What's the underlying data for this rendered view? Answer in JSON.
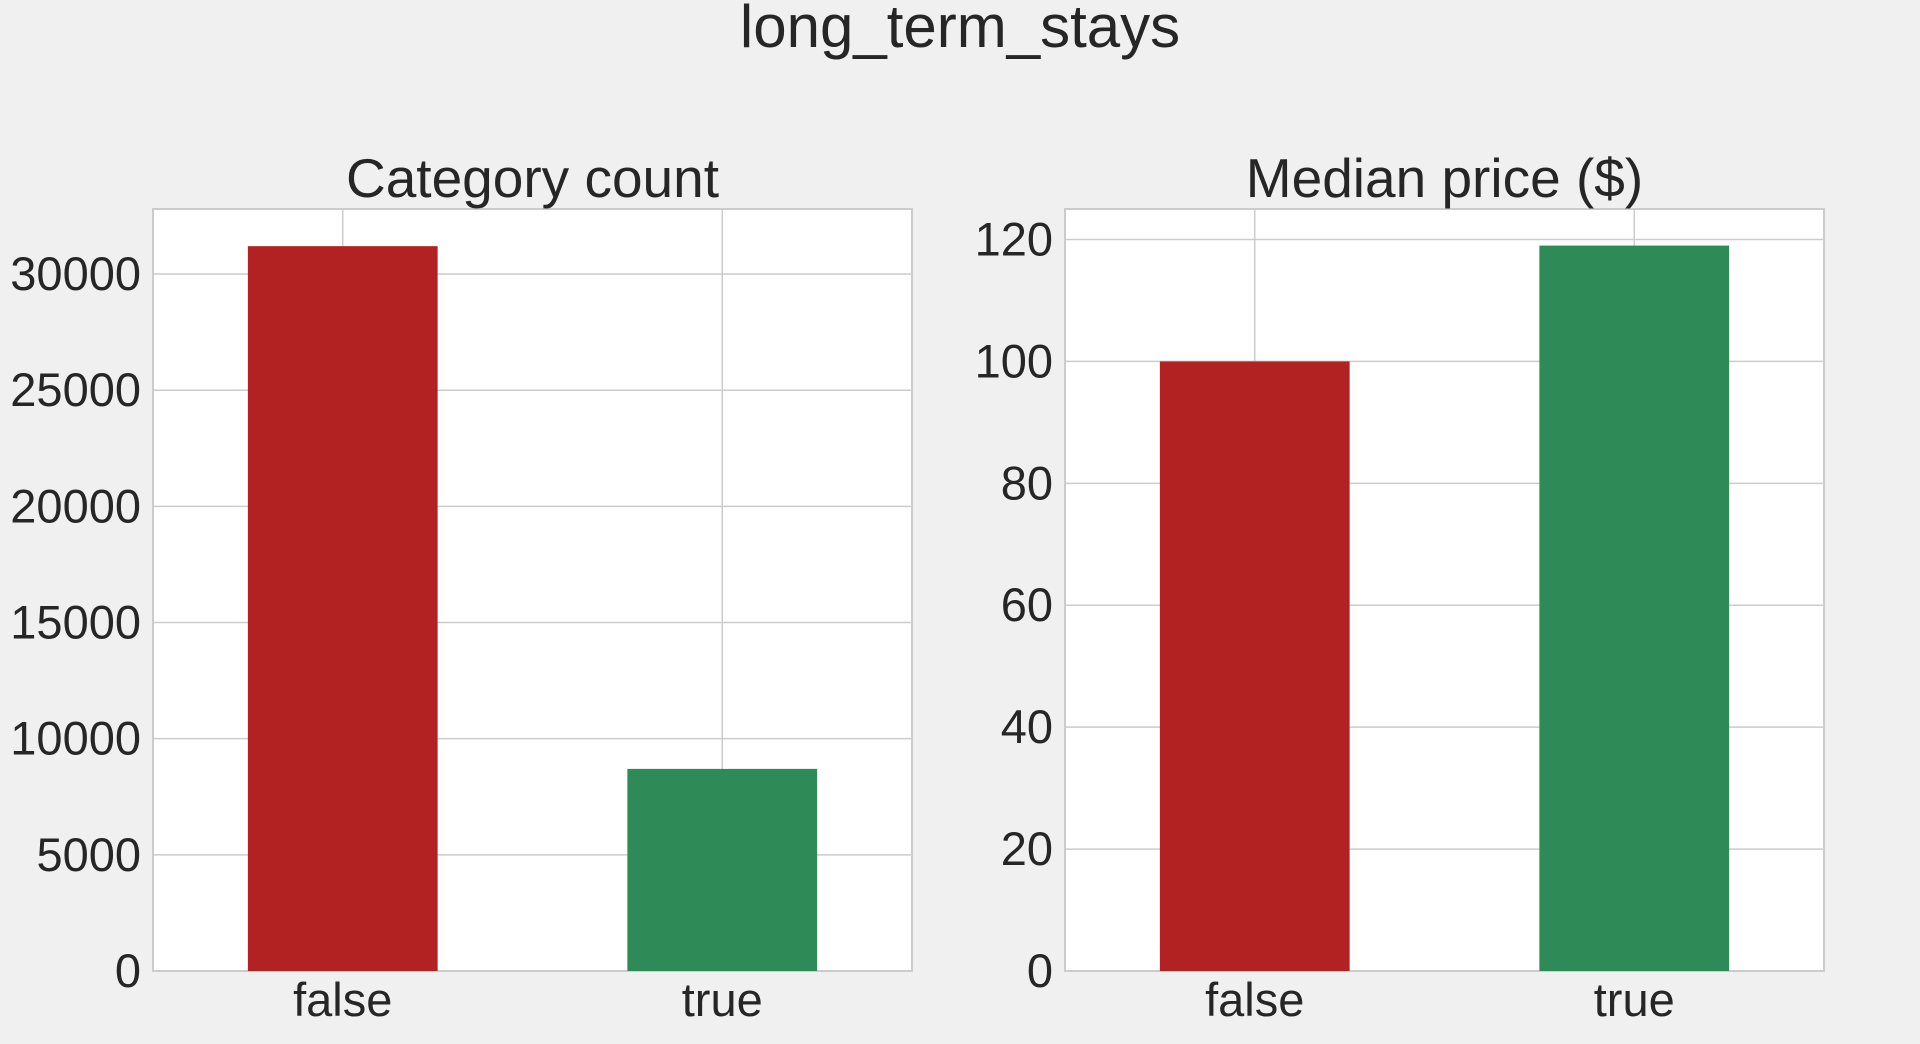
{
  "figure": {
    "title": "long_term_stays"
  },
  "chart_data": [
    {
      "type": "bar",
      "title": "Category count",
      "xlabel": "",
      "ylabel": "",
      "categories": [
        "false",
        "true"
      ],
      "values": [
        31200,
        8700
      ],
      "colors": [
        "#b22222",
        "#2e8b57"
      ],
      "ylim": [
        0,
        32800
      ],
      "yticks": [
        0,
        5000,
        10000,
        15000,
        20000,
        25000,
        30000
      ],
      "grid": true
    },
    {
      "type": "bar",
      "title": "Median price ($)",
      "xlabel": "",
      "ylabel": "",
      "categories": [
        "false",
        "true"
      ],
      "values": [
        100,
        119
      ],
      "colors": [
        "#b22222",
        "#2e8b57"
      ],
      "ylim": [
        0,
        125
      ],
      "yticks": [
        0,
        20,
        40,
        60,
        80,
        100,
        120
      ],
      "grid": true
    }
  ]
}
